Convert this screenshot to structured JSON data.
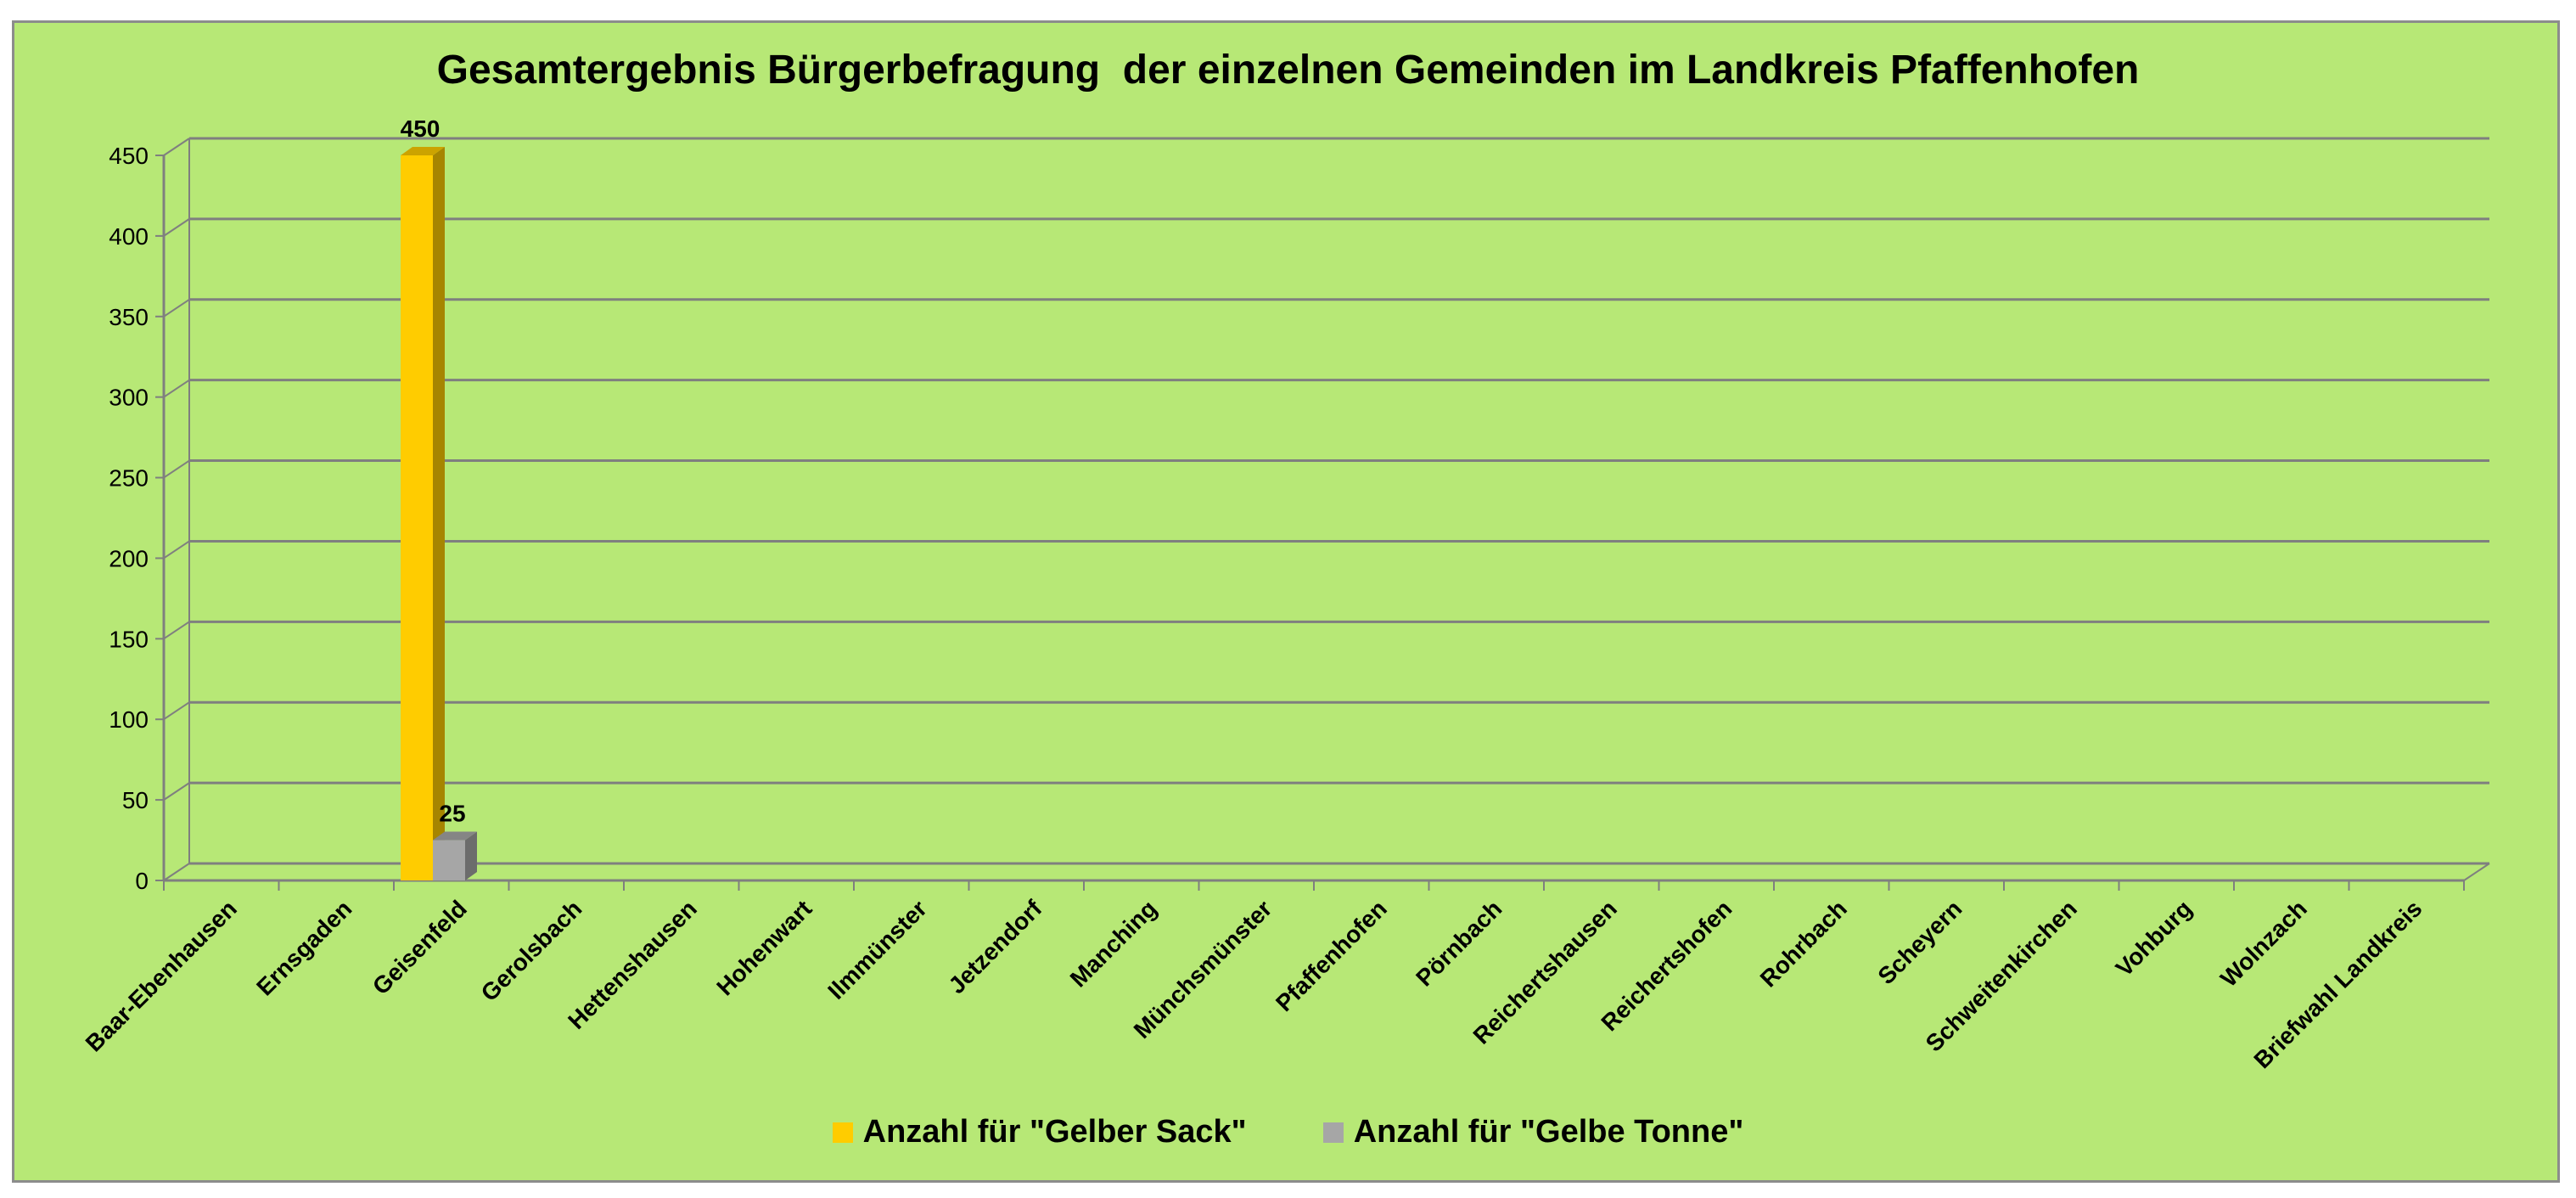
{
  "chart_data": {
    "type": "bar",
    "title": "Gesamtergebnis Bürgerbefragung  der einzelnen Gemeinden im Landkreis Pfaffenhofen",
    "xlabel": "",
    "ylabel": "",
    "ylim": [
      0,
      450
    ],
    "yticks": [
      0,
      50,
      100,
      150,
      200,
      250,
      300,
      350,
      400,
      450
    ],
    "categories": [
      "Baar-Ebenhausen",
      "Ernsgaden",
      "Geisenfeld",
      "Gerolsbach",
      "Hettenshausen",
      "Hohenwart",
      "Ilmmünster",
      "Jetzendorf",
      "Manching",
      "Münchsmünster",
      "Pfaffenhofen",
      "Pörnbach",
      "Reichertshausen",
      "Reichertshofen",
      "Rohrbach",
      "Scheyern",
      "Schweitenkirchen",
      "Vohburg",
      "Wolnzach",
      "Briefwahl Landkreis"
    ],
    "series": [
      {
        "name": "Anzahl für \"Gelber Sack\"",
        "color": "#ffcc00",
        "values": [
          null,
          null,
          450,
          null,
          null,
          null,
          null,
          null,
          null,
          null,
          null,
          null,
          null,
          null,
          null,
          null,
          null,
          null,
          null,
          null
        ]
      },
      {
        "name": "Anzahl für \"Gelbe Tonne\"",
        "color": "#a6a6a6",
        "values": [
          null,
          null,
          25,
          null,
          null,
          null,
          null,
          null,
          null,
          null,
          null,
          null,
          null,
          null,
          null,
          null,
          null,
          null,
          null,
          null
        ]
      }
    ],
    "data_labels": true,
    "grid": true,
    "legend_position": "bottom",
    "background_color": "#b7e876",
    "gridline_color": "#7f7f7f"
  }
}
